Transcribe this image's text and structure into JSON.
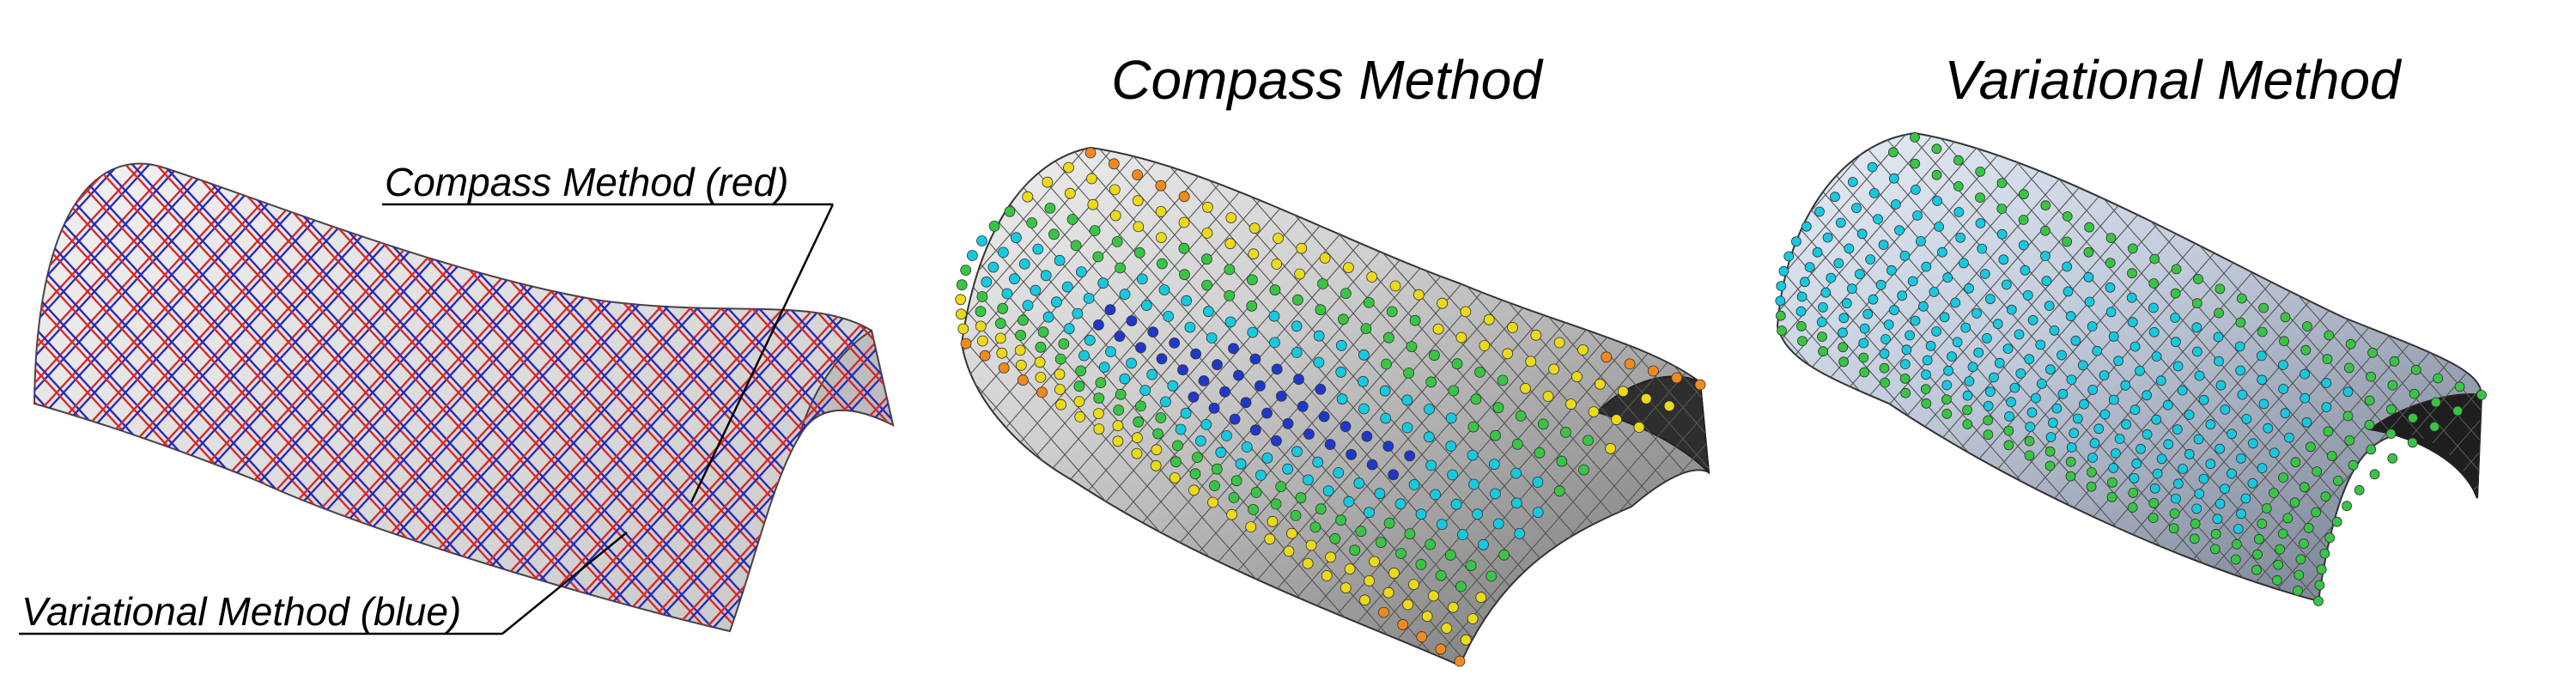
{
  "panels": [
    {
      "title": "",
      "surface": "grid overlay",
      "grid_color_a": "#d42a2a",
      "grid_color_b": "#2b2bb8"
    },
    {
      "title": "Compass Method",
      "surface": "gray cylinder-like surface with colored nodes"
    },
    {
      "title": "Variational Method",
      "surface": "blue-gray cylinder-like surface with cyan and green nodes"
    }
  ],
  "callouts": {
    "compass": "Compass Method (red)",
    "variational": "Variational Method (blue)"
  },
  "colors": {
    "surface_light": "#ececec",
    "surface_mid": "#c9c9c9",
    "surface_dark": "#3a3a3a",
    "blue_surface": "#c7d2e2",
    "node_cyan": "#16c9e0",
    "node_green": "#38c544",
    "node_yellow": "#ecd91a",
    "node_orange": "#f08a1f",
    "node_red": "#d62c17",
    "node_blue": "#2038c8"
  }
}
